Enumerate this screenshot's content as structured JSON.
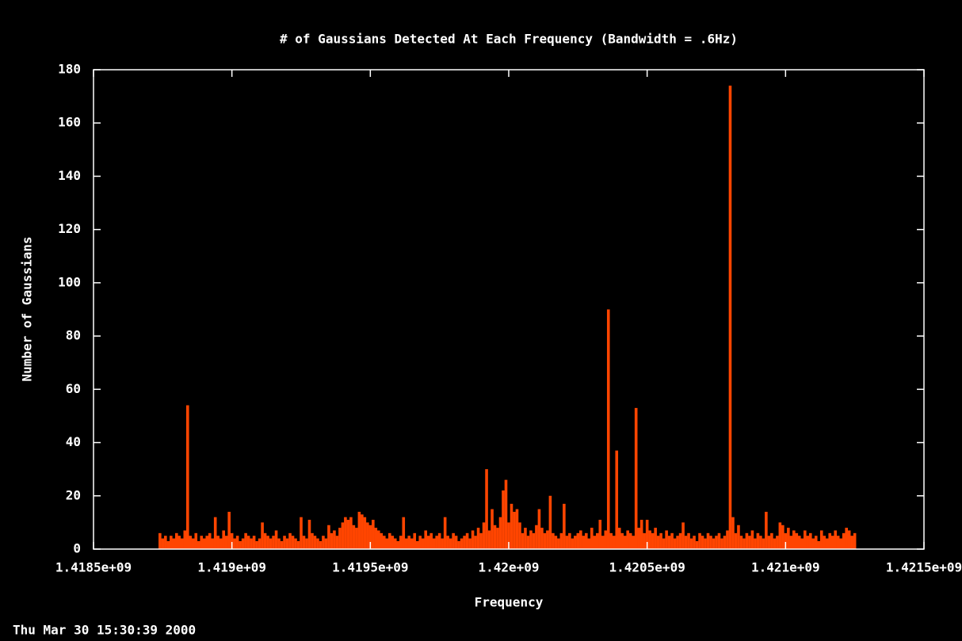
{
  "chart_data": {
    "type": "impulse",
    "title": "# of Gaussians Detected At Each Frequency (Bandwidth = .6Hz)",
    "xlabel": "Frequency",
    "ylabel": "Number of Gaussians",
    "timestamp": "Thu Mar 30 15:30:39 2000",
    "color": "#ff4500",
    "xlim": [
      1418500000,
      1421500000
    ],
    "ylim": [
      0,
      180
    ],
    "xticks": [
      {
        "value": 1418500000,
        "label": "1.4185e+09"
      },
      {
        "value": 1419000000,
        "label": "1.419e+09"
      },
      {
        "value": 1419500000,
        "label": "1.4195e+09"
      },
      {
        "value": 1420000000,
        "label": "1.42e+09"
      },
      {
        "value": 1420500000,
        "label": "1.4205e+09"
      },
      {
        "value": 1421000000,
        "label": "1.421e+09"
      },
      {
        "value": 1421500000,
        "label": "1.4215e+09"
      }
    ],
    "yticks": [
      0,
      20,
      40,
      60,
      80,
      100,
      120,
      140,
      160,
      180
    ],
    "x": [
      1418740000,
      1418750000,
      1418760000,
      1418770000,
      1418780000,
      1418790000,
      1418800000,
      1418810000,
      1418820000,
      1418830000,
      1418840000,
      1418850000,
      1418860000,
      1418870000,
      1418880000,
      1418890000,
      1418900000,
      1418910000,
      1418920000,
      1418930000,
      1418940000,
      1418950000,
      1418960000,
      1418970000,
      1418980000,
      1418990000,
      1419000000,
      1419010000,
      1419020000,
      1419030000,
      1419040000,
      1419050000,
      1419060000,
      1419070000,
      1419080000,
      1419090000,
      1419100000,
      1419110000,
      1419120000,
      1419130000,
      1419140000,
      1419150000,
      1419160000,
      1419170000,
      1419180000,
      1419190000,
      1419200000,
      1419210000,
      1419220000,
      1419230000,
      1419240000,
      1419250000,
      1419260000,
      1419270000,
      1419280000,
      1419290000,
      1419300000,
      1419310000,
      1419320000,
      1419330000,
      1419340000,
      1419350000,
      1419360000,
      1419370000,
      1419380000,
      1419390000,
      1419400000,
      1419410000,
      1419420000,
      1419430000,
      1419440000,
      1419450000,
      1419460000,
      1419470000,
      1419480000,
      1419490000,
      1419500000,
      1419510000,
      1419520000,
      1419530000,
      1419540000,
      1419550000,
      1419560000,
      1419570000,
      1419580000,
      1419590000,
      1419600000,
      1419610000,
      1419620000,
      1419630000,
      1419640000,
      1419650000,
      1419660000,
      1419670000,
      1419680000,
      1419690000,
      1419700000,
      1419710000,
      1419720000,
      1419730000,
      1419740000,
      1419750000,
      1419760000,
      1419770000,
      1419780000,
      1419790000,
      1419800000,
      1419810000,
      1419820000,
      1419830000,
      1419840000,
      1419850000,
      1419860000,
      1419870000,
      1419880000,
      1419890000,
      1419900000,
      1419910000,
      1419920000,
      1419930000,
      1419940000,
      1419950000,
      1419960000,
      1419970000,
      1419980000,
      1419990000,
      1420000000,
      1420010000,
      1420020000,
      1420030000,
      1420040000,
      1420050000,
      1420060000,
      1420070000,
      1420080000,
      1420090000,
      1420100000,
      1420110000,
      1420120000,
      1420130000,
      1420140000,
      1420150000,
      1420160000,
      1420170000,
      1420180000,
      1420190000,
      1420200000,
      1420210000,
      1420220000,
      1420230000,
      1420240000,
      1420250000,
      1420260000,
      1420270000,
      1420280000,
      1420290000,
      1420300000,
      1420310000,
      1420320000,
      1420330000,
      1420340000,
      1420350000,
      1420360000,
      1420370000,
      1420380000,
      1420390000,
      1420400000,
      1420410000,
      1420420000,
      1420430000,
      1420440000,
      1420450000,
      1420460000,
      1420470000,
      1420480000,
      1420490000,
      1420500000,
      1420510000,
      1420520000,
      1420530000,
      1420540000,
      1420550000,
      1420560000,
      1420570000,
      1420580000,
      1420590000,
      1420600000,
      1420610000,
      1420620000,
      1420630000,
      1420640000,
      1420650000,
      1420660000,
      1420670000,
      1420680000,
      1420690000,
      1420700000,
      1420710000,
      1420720000,
      1420730000,
      1420740000,
      1420750000,
      1420760000,
      1420770000,
      1420780000,
      1420790000,
      1420800000,
      1420810000,
      1420820000,
      1420830000,
      1420840000,
      1420850000,
      1420860000,
      1420870000,
      1420880000,
      1420890000,
      1420900000,
      1420910000,
      1420920000,
      1420930000,
      1420940000,
      1420950000,
      1420960000,
      1420970000,
      1420980000,
      1420990000,
      1421000000,
      1421010000,
      1421020000,
      1421030000,
      1421040000,
      1421050000,
      1421060000,
      1421070000,
      1421080000,
      1421090000,
      1421100000,
      1421110000,
      1421120000,
      1421130000,
      1421140000,
      1421150000,
      1421160000,
      1421170000,
      1421180000,
      1421190000,
      1421200000,
      1421210000,
      1421220000,
      1421230000,
      1421240000,
      1421250000
    ],
    "values": [
      6,
      4,
      5,
      3,
      5,
      4,
      6,
      5,
      4,
      7,
      54,
      5,
      4,
      6,
      3,
      5,
      4,
      5,
      6,
      4,
      12,
      5,
      4,
      7,
      5,
      14,
      6,
      4,
      5,
      3,
      4,
      6,
      5,
      4,
      5,
      3,
      4,
      10,
      6,
      5,
      4,
      5,
      7,
      4,
      3,
      5,
      4,
      6,
      5,
      4,
      3,
      12,
      5,
      4,
      11,
      6,
      5,
      4,
      3,
      5,
      4,
      9,
      6,
      7,
      5,
      8,
      10,
      12,
      11,
      12,
      9,
      8,
      14,
      13,
      12,
      10,
      9,
      11,
      8,
      7,
      6,
      5,
      4,
      6,
      5,
      4,
      3,
      5,
      12,
      4,
      5,
      4,
      6,
      3,
      5,
      4,
      7,
      5,
      6,
      4,
      5,
      6,
      4,
      12,
      5,
      4,
      6,
      5,
      3,
      4,
      5,
      6,
      4,
      7,
      5,
      8,
      6,
      10,
      30,
      7,
      15,
      9,
      8,
      12,
      22,
      26,
      10,
      17,
      14,
      15,
      10,
      6,
      8,
      5,
      7,
      6,
      9,
      15,
      8,
      6,
      7,
      20,
      6,
      5,
      4,
      6,
      17,
      5,
      6,
      4,
      5,
      6,
      7,
      5,
      6,
      4,
      8,
      5,
      6,
      11,
      5,
      7,
      90,
      6,
      5,
      37,
      8,
      6,
      5,
      7,
      6,
      5,
      53,
      8,
      11,
      6,
      11,
      7,
      6,
      8,
      5,
      6,
      4,
      7,
      5,
      6,
      4,
      5,
      6,
      10,
      5,
      6,
      4,
      5,
      3,
      6,
      5,
      4,
      6,
      5,
      4,
      5,
      6,
      4,
      5,
      7,
      174,
      12,
      6,
      9,
      5,
      4,
      6,
      5,
      7,
      4,
      6,
      5,
      4,
      14,
      5,
      6,
      4,
      5,
      10,
      9,
      6,
      8,
      5,
      7,
      6,
      5,
      4,
      7,
      5,
      6,
      4,
      5,
      3,
      7,
      5,
      4,
      6,
      5,
      7,
      5,
      4,
      6,
      8,
      7,
      5,
      6
    ]
  }
}
